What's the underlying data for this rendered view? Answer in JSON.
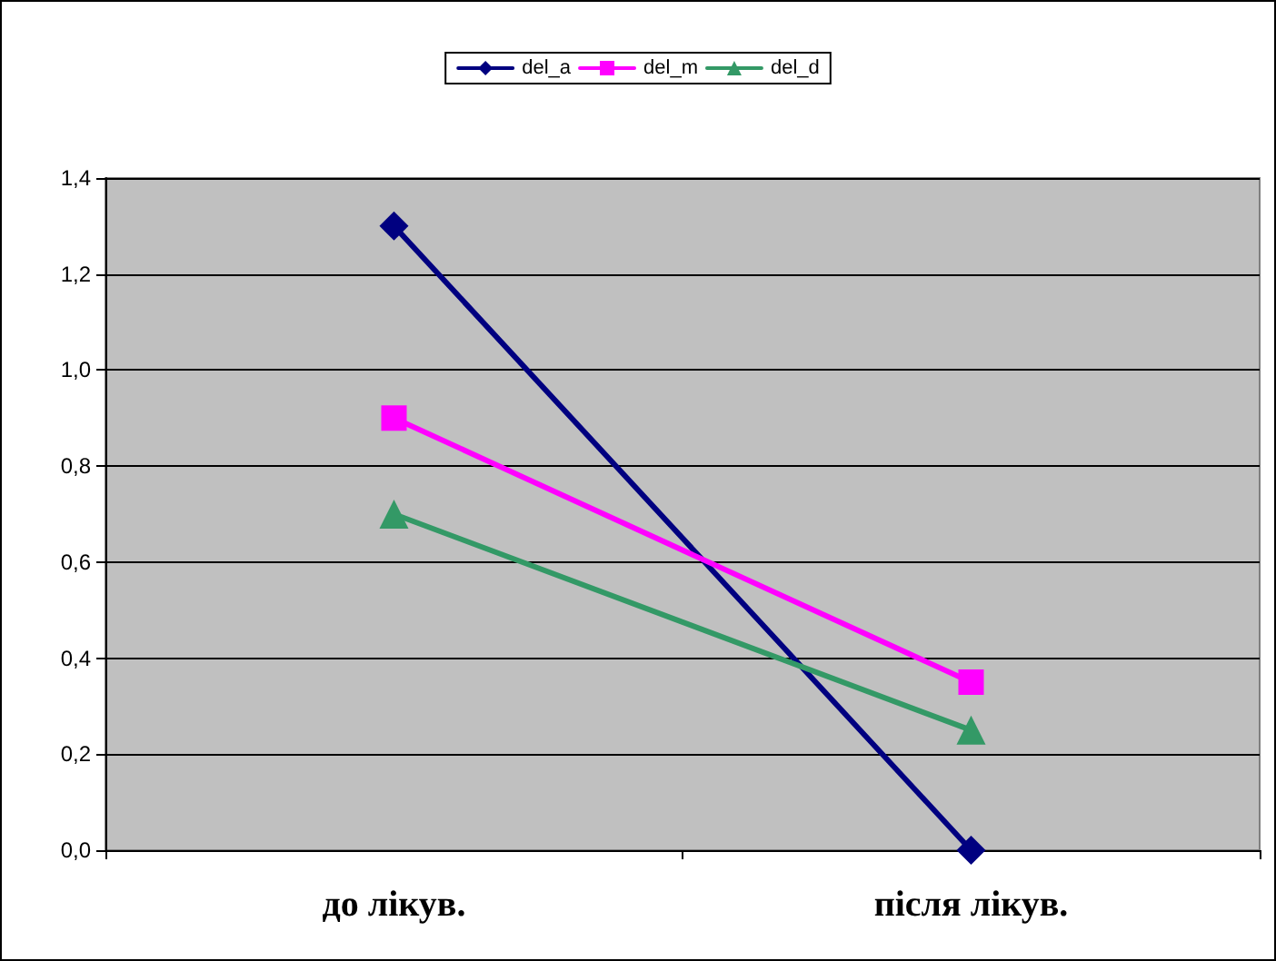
{
  "chart_data": {
    "type": "line",
    "categories": [
      "до лікув.",
      "після лікув."
    ],
    "series": [
      {
        "name": "del_a",
        "color": "#000080",
        "marker": "diamond",
        "values": [
          1.3,
          0.0
        ]
      },
      {
        "name": "del_m",
        "color": "#ff00ff",
        "marker": "square",
        "values": [
          0.9,
          0.35
        ]
      },
      {
        "name": "del_d",
        "color": "#339966",
        "marker": "triangle",
        "values": [
          0.7,
          0.25
        ]
      }
    ],
    "ylim": [
      0,
      1.4
    ],
    "yticks": [
      {
        "value": 0,
        "label": "0,0"
      },
      {
        "value": 0.2,
        "label": "0,2"
      },
      {
        "value": 0.4,
        "label": "0,4"
      },
      {
        "value": 0.6,
        "label": "0,6"
      },
      {
        "value": 0.8,
        "label": "0,8"
      },
      {
        "value": 1.0,
        "label": "1,0"
      },
      {
        "value": 1.2,
        "label": "1,2"
      },
      {
        "value": 1.4,
        "label": "1,4"
      }
    ],
    "grid": "y",
    "legend": "top",
    "line_style": "solid"
  }
}
